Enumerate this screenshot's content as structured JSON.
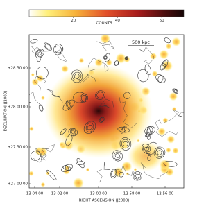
{
  "colorbar": {
    "title": "COUNTS",
    "lim": [
      0,
      70
    ],
    "ticks": [
      20,
      40,
      60
    ]
  },
  "scale_bar": "500 kpc",
  "y_axis": {
    "title": "DECLINATION (J2000)",
    "ticks": [
      "+28 30 00",
      "+28 00 00",
      "+27 30 00",
      "+27 00 00"
    ]
  },
  "x_axis": {
    "title": "RIGHT ASCENSION (J2000)",
    "ticks": [
      "13 04 00",
      "13 02 00",
      "13 00 00",
      "12 58 00",
      "12 56 00"
    ]
  }
}
